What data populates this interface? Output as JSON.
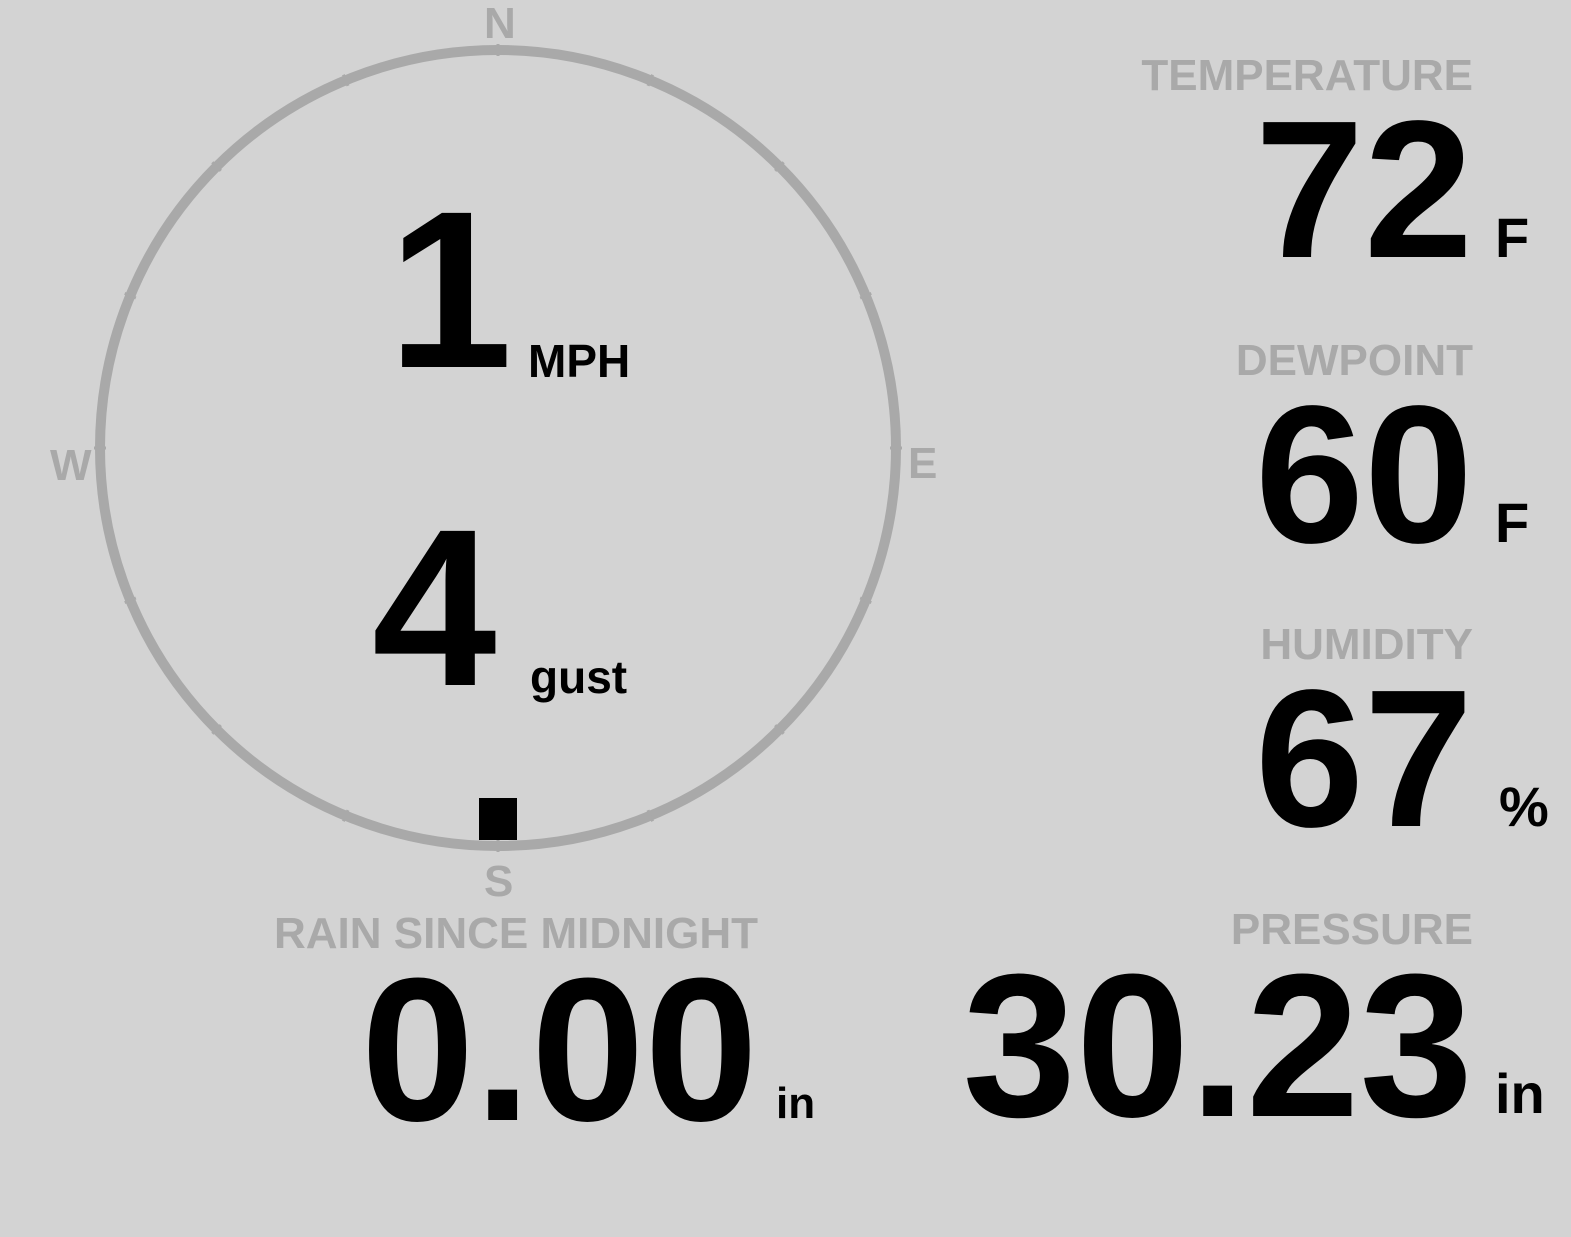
{
  "wind": {
    "speed": "1",
    "speed_unit": "MPH",
    "gust": "4",
    "gust_unit": "gust",
    "direction_degrees": 180,
    "compass": {
      "n": "N",
      "e": "E",
      "s": "S",
      "w": "W"
    }
  },
  "temperature": {
    "label": "TEMPERATURE",
    "value": "72",
    "unit": "F"
  },
  "dewpoint": {
    "label": "DEWPOINT",
    "value": "60",
    "unit": "F"
  },
  "humidity": {
    "label": "HUMIDITY",
    "value": "67",
    "unit": "%"
  },
  "pressure": {
    "label": "PRESSURE",
    "value": "30.23",
    "unit": "in"
  },
  "rain": {
    "label": "RAIN SINCE MIDNIGHT",
    "value": "0.00",
    "unit": "in"
  },
  "colors": {
    "background": "#d3d3d3",
    "dim": "#a9a9a9",
    "value": "#000000"
  }
}
